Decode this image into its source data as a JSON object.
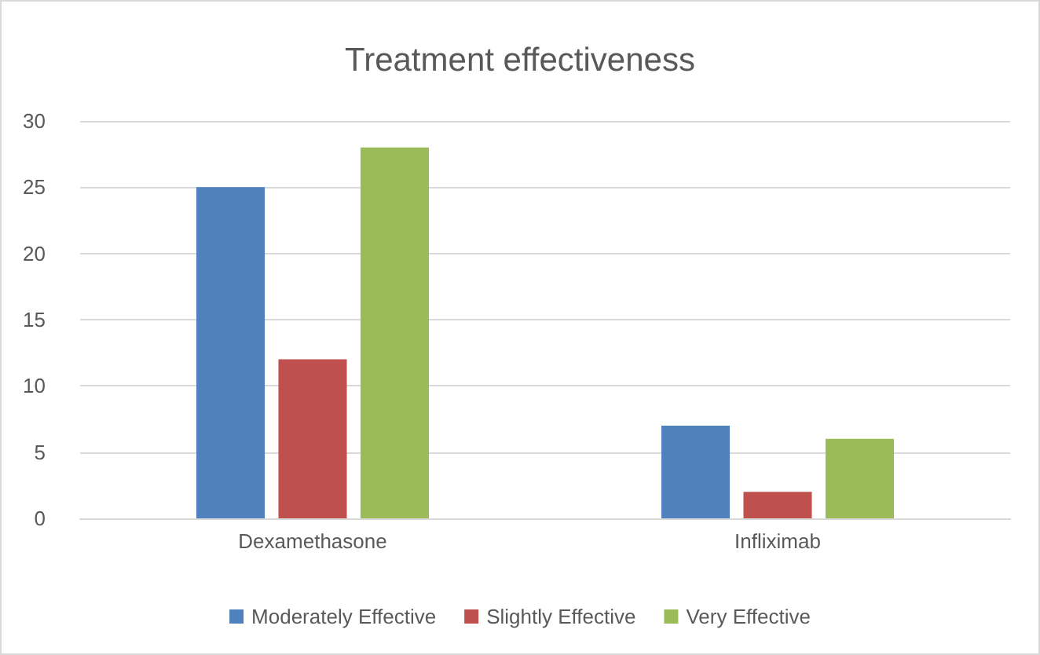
{
  "chart_data": {
    "type": "bar",
    "title": "Treatment effectiveness",
    "categories": [
      "Dexamethasone",
      "Infliximab"
    ],
    "series": [
      {
        "name": "Moderately Effective",
        "color": "#4f81bd",
        "values": [
          25,
          7
        ]
      },
      {
        "name": "Slightly Effective",
        "color": "#c0504d",
        "values": [
          12,
          2
        ]
      },
      {
        "name": "Very Effective",
        "color": "#9bbb59",
        "values": [
          28,
          6
        ]
      }
    ],
    "ylim": [
      0,
      30
    ],
    "yticks": [
      0,
      5,
      10,
      15,
      20,
      25,
      30
    ],
    "grid": "y",
    "legend": "bottom"
  }
}
